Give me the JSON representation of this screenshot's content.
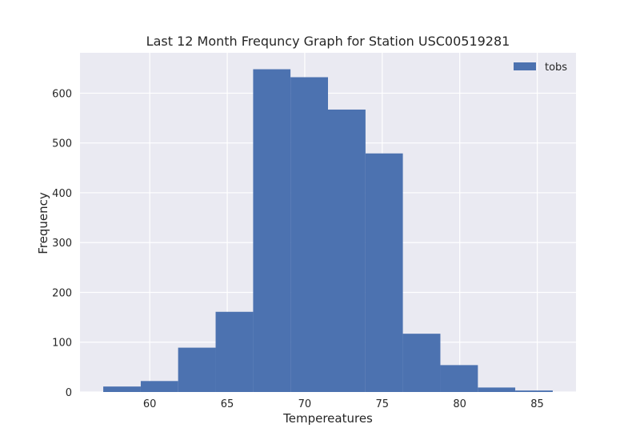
{
  "chart_data": {
    "type": "bar",
    "title": "Last 12 Month Frequncy Graph for Station USC00519281",
    "xlabel": "Tempereatures",
    "ylabel": "Frequency",
    "bin_edges": [
      57.0,
      59.42,
      61.83,
      64.25,
      66.67,
      69.08,
      71.5,
      73.92,
      76.33,
      78.75,
      81.17,
      83.58,
      86.0
    ],
    "series": [
      {
        "name": "tobs",
        "values": [
          11,
          22,
          89,
          161,
          648,
          632,
          567,
          479,
          117,
          54,
          9,
          3
        ]
      }
    ],
    "xlim": [
      55.5,
      87.5
    ],
    "ylim": [
      0,
      681
    ],
    "xticks": [
      60,
      65,
      70,
      75,
      80,
      85
    ],
    "yticks": [
      0,
      100,
      200,
      300,
      400,
      500,
      600
    ],
    "grid": true,
    "legend_position": "top-right",
    "colors": {
      "bar": "#4c72b0",
      "plot_background": "#eaeaf2",
      "grid": "#ffffff",
      "text": "#262626"
    }
  }
}
